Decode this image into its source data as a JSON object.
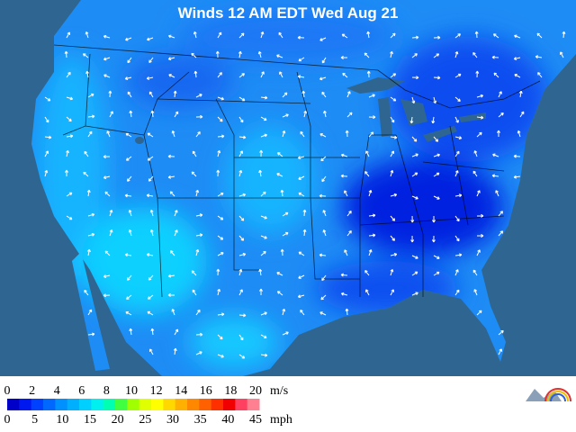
{
  "title": "Winds 12 AM EDT Wed Aug 21",
  "legend": {
    "ms": {
      "labels": [
        0,
        2,
        4,
        6,
        8,
        10,
        12,
        14,
        16,
        18,
        20
      ],
      "unit": "m/s"
    },
    "mph": {
      "labels": [
        0,
        5,
        10,
        15,
        20,
        25,
        30,
        35,
        40,
        45
      ],
      "unit": "mph"
    }
  }
}
